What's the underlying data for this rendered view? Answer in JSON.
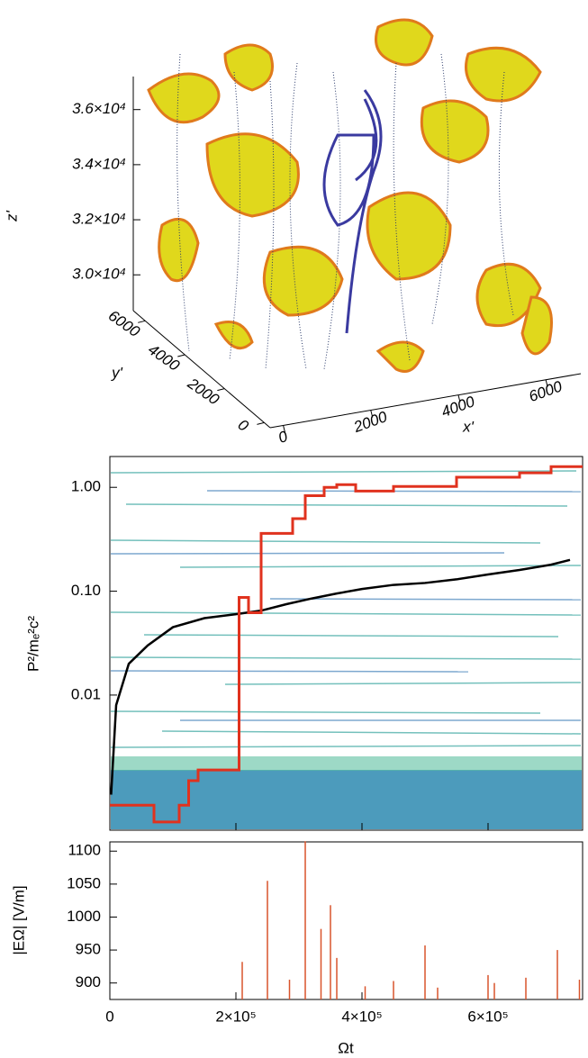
{
  "chart_data": [
    {
      "type": "surface3d",
      "zlabel": "z'",
      "ylabel": "y'",
      "xlabel": "x'",
      "zlim": [
        28700,
        37200
      ],
      "zticks": [
        {
          "value": 30000,
          "label": "3.0×10⁴"
        },
        {
          "value": 32000,
          "label": "3.2×10⁴"
        },
        {
          "value": 34000,
          "label": "3.4×10⁴"
        },
        {
          "value": 36000,
          "label": "3.6×10⁴"
        }
      ],
      "xlim": [
        -300,
        6800
      ],
      "xticks": [
        0,
        2000,
        4000,
        6000
      ],
      "ylim": [
        -300,
        6600
      ],
      "yticks": [
        0,
        2000,
        4000,
        6000
      ]
    },
    {
      "type": "line",
      "ylabel": "P²/mₑ²c²",
      "log_y": true,
      "xlim": [
        0,
        750000
      ],
      "xticks": [
        0,
        200000,
        400000,
        600000
      ],
      "ylim": [
        0.0005,
        1.98
      ],
      "yticks": [
        {
          "value": 0.01,
          "label": "0.01"
        },
        {
          "value": 0.1,
          "label": "0.10"
        },
        {
          "value": 1,
          "label": "1.00"
        }
      ],
      "series": [
        {
          "color": "#000000",
          "x": [
            2000,
            10000,
            30000,
            60000,
            100000,
            150000,
            200000,
            240000,
            280000,
            320000,
            360000,
            400000,
            450000,
            500000,
            550000,
            600000,
            650000,
            700000,
            730000
          ],
          "values": [
            0.0011,
            0.008,
            0.02,
            0.03,
            0.045,
            0.055,
            0.06,
            0.065,
            0.075,
            0.085,
            0.095,
            0.105,
            0.115,
            0.12,
            0.13,
            0.145,
            0.16,
            0.18,
            0.2
          ]
        },
        {
          "color": "#e0321e",
          "x": [
            0,
            70000,
            70000,
            110000,
            110000,
            125000,
            125000,
            140000,
            140000,
            205000,
            205000,
            220000,
            220000,
            240000,
            240000,
            290000,
            290000,
            310000,
            310000,
            340000,
            340000,
            360000,
            360000,
            390000,
            390000,
            450000,
            450000,
            550000,
            550000,
            650000,
            650000,
            700000,
            700000,
            750000
          ],
          "values": [
            0.00087,
            0.00087,
            0.0006,
            0.0006,
            0.00087,
            0.00087,
            0.0015,
            0.0015,
            0.0019,
            0.0019,
            0.087,
            0.087,
            0.062,
            0.062,
            0.36,
            0.36,
            0.5,
            0.5,
            0.83,
            0.83,
            1.0,
            1.0,
            1.06,
            1.06,
            0.92,
            0.92,
            1.02,
            1.02,
            1.25,
            1.25,
            1.38,
            1.38,
            1.58,
            1.58
          ]
        }
      ]
    },
    {
      "type": "bar",
      "ylabel": "|EΩ| [V/m]",
      "xlabel": "Ωt",
      "color": "#d9542c",
      "xlim": [
        0,
        750000
      ],
      "xticks": [
        {
          "value": 0,
          "label": "0"
        },
        {
          "value": 200000,
          "label": "2×10⁵"
        },
        {
          "value": 400000,
          "label": "4×10⁵"
        },
        {
          "value": 600000,
          "label": "6×10⁵"
        }
      ],
      "ylim": [
        875,
        1114
      ],
      "yticks": [
        900,
        950,
        1000,
        1050,
        1100
      ],
      "x": [
        210000,
        250000,
        285000,
        310000,
        335000,
        350000,
        360000,
        405000,
        450000,
        500000,
        520000,
        600000,
        610000,
        660000,
        710000,
        745000
      ],
      "values": [
        932,
        1055,
        905,
        1115,
        982,
        1018,
        938,
        895,
        903,
        957,
        893,
        912,
        900,
        908,
        950,
        905
      ]
    }
  ]
}
